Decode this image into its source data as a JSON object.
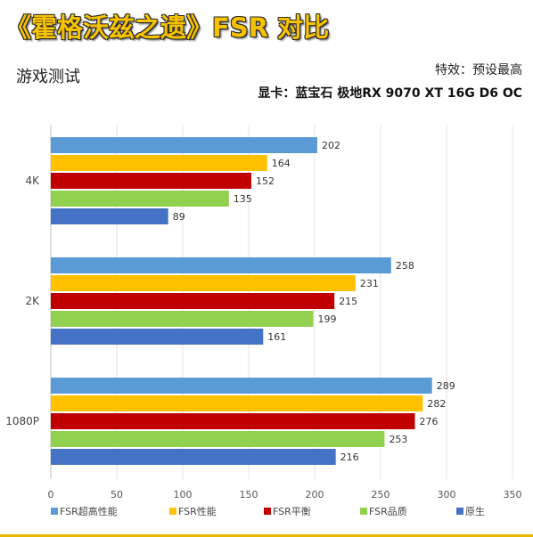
{
  "header": {
    "title": "《霍格沃兹之遗》FSR 对比",
    "subtitle": "游戏测试",
    "effect": "特效：预设最高",
    "gpu": "显卡：蓝宝石 极地RX 9070 XT 16G D6 OC"
  },
  "chart_data": {
    "type": "bar",
    "orientation": "horizontal",
    "categories": [
      "4K",
      "2K",
      "1080P"
    ],
    "series": [
      {
        "name": "FSR超高性能",
        "color": "#5b9bd5",
        "values": [
          202,
          258,
          289
        ]
      },
      {
        "name": "FSR性能",
        "color": "#ffc000",
        "values": [
          164,
          231,
          282
        ]
      },
      {
        "name": "FSR平衡",
        "color": "#c00000",
        "values": [
          152,
          215,
          276
        ]
      },
      {
        "name": "FSR品质",
        "color": "#92d050",
        "values": [
          135,
          199,
          253
        ]
      },
      {
        "name": "原生",
        "color": "#4472c4",
        "values": [
          89,
          161,
          216
        ]
      }
    ],
    "xlim": [
      0,
      350
    ],
    "xticks": [
      0,
      50,
      100,
      150,
      200,
      250,
      300,
      350
    ],
    "grid": true,
    "legend": "bottom"
  }
}
